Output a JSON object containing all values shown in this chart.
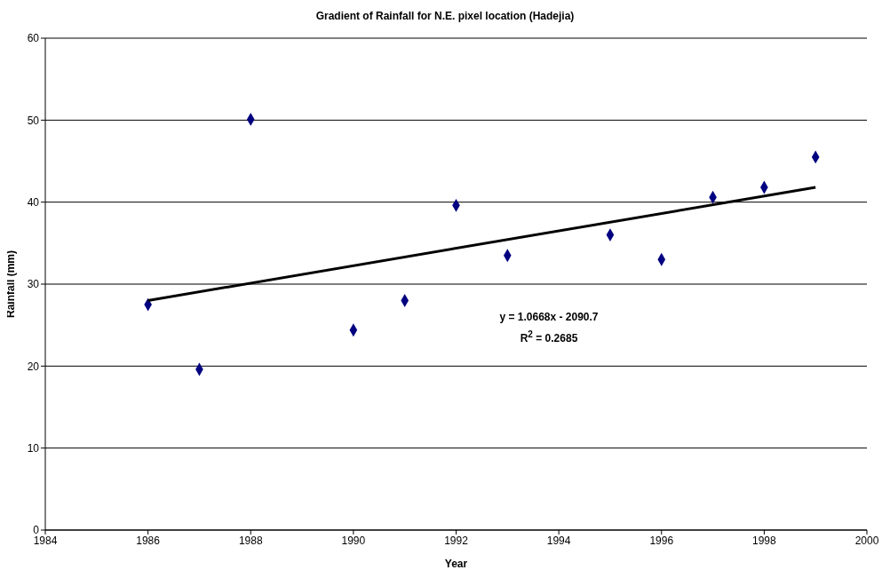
{
  "chart_data": {
    "type": "scatter",
    "title": "Gradient of Rainfall for N.E. pixel location (Hadejia)",
    "xlabel": "Year",
    "ylabel": "Rainfall (mm)",
    "series": [
      {
        "color": "#000080",
        "x": [
          1986,
          1987,
          1988,
          1990,
          1991,
          1992,
          1993,
          1995,
          1996,
          1997,
          1998,
          1999
        ],
        "values": [
          27.5,
          19.6,
          50.1,
          24.4,
          28.0,
          39.6,
          33.5,
          36.0,
          33.0,
          40.6,
          41.8,
          45.5
        ]
      },
      {
        "type": "line",
        "color": "#000000",
        "marker": "none",
        "x": [
          1986,
          1999
        ],
        "values": [
          28.0,
          41.8
        ]
      }
    ],
    "annotations": [
      "y = 1.0668x - 2090.7",
      "R$^{2}$ = 0.2685"
    ],
    "xlim": [
      1984,
      2000
    ],
    "xticks": [
      1984,
      1986,
      1988,
      1990,
      1992,
      1994,
      1996,
      1998,
      2000
    ],
    "ylim": [
      0,
      60
    ],
    "yticks": [
      0,
      10,
      20,
      30,
      40,
      50,
      60
    ],
    "grid": "y",
    "marker": "diamond",
    "legend": false
  }
}
